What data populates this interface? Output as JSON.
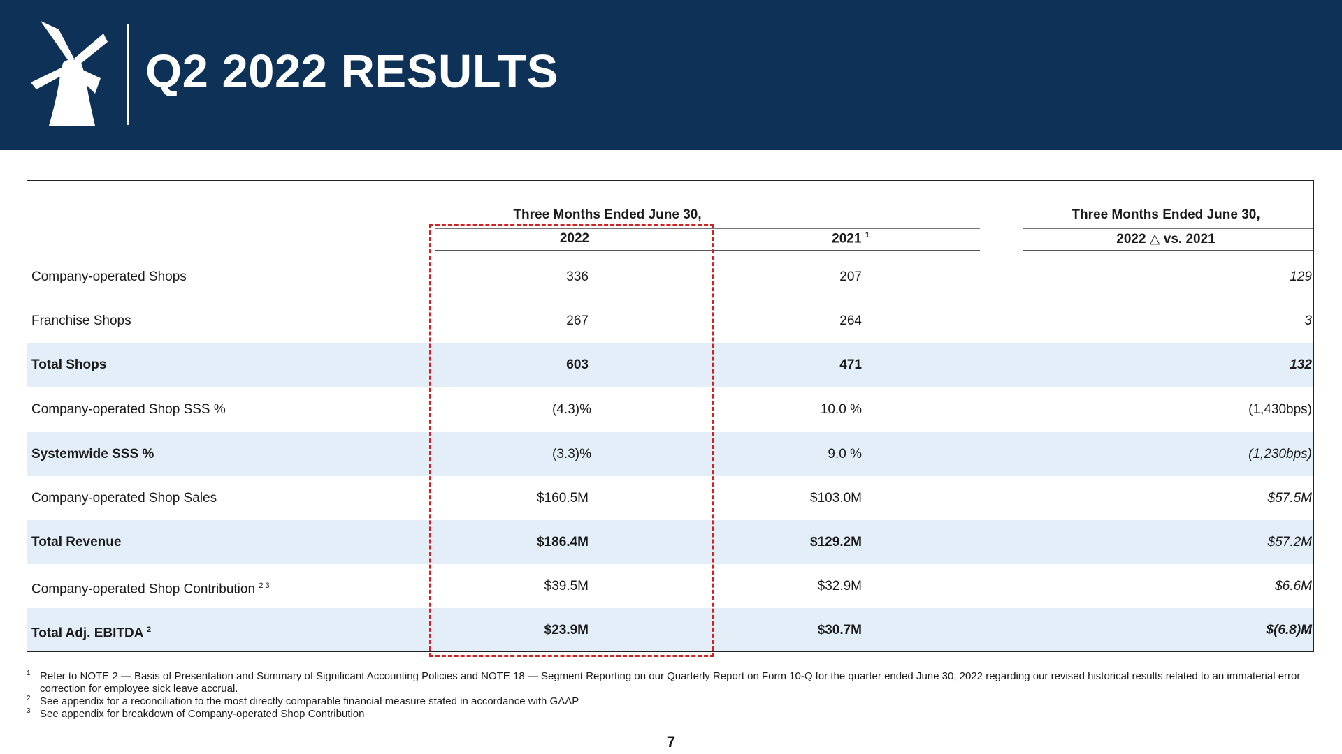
{
  "header": {
    "title": "Q2 2022 RESULTS"
  },
  "table": {
    "group1": "Three Months Ended June 30,",
    "group2": "Three Months Ended June 30,",
    "col1": "2022",
    "col2": "2021",
    "col2_sup": "1",
    "col3_a": "2022",
    "col3_symbol": "△",
    "col3_b": "vs. 2021",
    "rows": [
      {
        "label": "Company-operated Shops",
        "sup": "",
        "v2022": "336",
        "v2021": "207",
        "delta": "129"
      },
      {
        "label": "Franchise Shops",
        "sup": "",
        "v2022": "267",
        "v2021": "264",
        "delta": "3"
      },
      {
        "label": "Total Shops",
        "sup": "",
        "v2022": "603",
        "v2021": "471",
        "delta": "132"
      },
      {
        "label": "Company-operated Shop SSS %",
        "sup": "",
        "v2022": "(4.3)%",
        "v2021": "10.0 %",
        "delta": "(1,430bps)"
      },
      {
        "label": "Systemwide SSS %",
        "sup": "",
        "v2022": "(3.3)%",
        "v2021": "9.0 %",
        "delta": "(1,230bps)"
      },
      {
        "label": "Company-operated Shop Sales",
        "sup": "",
        "v2022": "$160.5M",
        "v2021": "$103.0M",
        "delta": "$57.5M"
      },
      {
        "label": "Total Revenue",
        "sup": "",
        "v2022": "$186.4M",
        "v2021": "$129.2M",
        "delta": "$57.2M"
      },
      {
        "label": "Company-operated Shop Contribution",
        "sup": "2 3",
        "v2022": "$39.5M",
        "v2021": "$32.9M",
        "delta": "$6.6M"
      },
      {
        "label": "Total Adj. EBITDA",
        "sup": "2",
        "v2022": "$23.9M",
        "v2021": "$30.7M",
        "delta": "$(6.8)M"
      }
    ]
  },
  "footnotes": [
    {
      "num": "1",
      "text": "Refer to NOTE 2 — Basis of Presentation and Summary of Significant Accounting Policies and NOTE 18 — Segment Reporting on our Quarterly Report on Form 10-Q for the quarter ended June 30, 2022 regarding our revised historical results related to an immaterial error correction for employee sick leave accrual."
    },
    {
      "num": "2",
      "text": "See appendix for a reconciliation to the most directly comparable financial measure stated in accordance with GAAP"
    },
    {
      "num": "3",
      "text": "See appendix for breakdown of Company-operated Shop Contribution"
    }
  ],
  "page_number": "7",
  "colors": {
    "header_bg": "#0e3158",
    "row_shade": "#e4eef8",
    "highlight": "#d32020"
  },
  "icons": {
    "logo": "windmill-logo-icon"
  }
}
